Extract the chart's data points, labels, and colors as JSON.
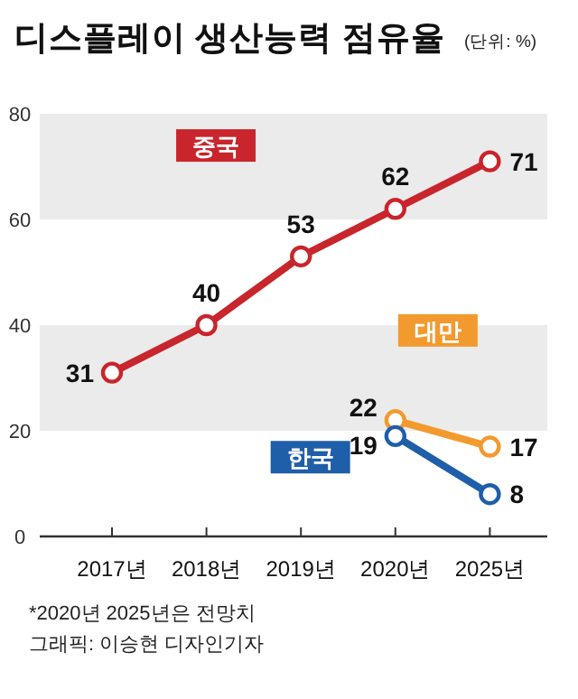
{
  "chart_data": {
    "type": "line",
    "title": "디스플레이 생산능력 점유율",
    "subtitle": "(단위: %)",
    "categories": [
      "2017년",
      "2018년",
      "2019년",
      "2020년",
      "2025년"
    ],
    "series": [
      {
        "name": "중국",
        "color": "#c9252c",
        "values": [
          31,
          40,
          53,
          62,
          71
        ]
      },
      {
        "name": "대만",
        "color": "#f39a2e",
        "values": [
          null,
          null,
          null,
          22,
          17
        ]
      },
      {
        "name": "한국",
        "color": "#1f5ea8",
        "values": [
          null,
          null,
          null,
          19,
          8
        ]
      }
    ],
    "ylim": [
      0,
      80
    ],
    "yticks": [
      0,
      20,
      40,
      60,
      80
    ],
    "bands": [
      {
        "axis": "y",
        "from": 20,
        "to": 40,
        "color": "#ebebeb"
      },
      {
        "axis": "y",
        "from": 60,
        "to": 80,
        "color": "#ebebeb"
      }
    ],
    "marker": "circle",
    "data_labels": true,
    "grid": false,
    "legend": false,
    "annotations": [
      "*2020년 2025년은 전망치",
      "그래픽: 이승현 디자인기자"
    ]
  }
}
